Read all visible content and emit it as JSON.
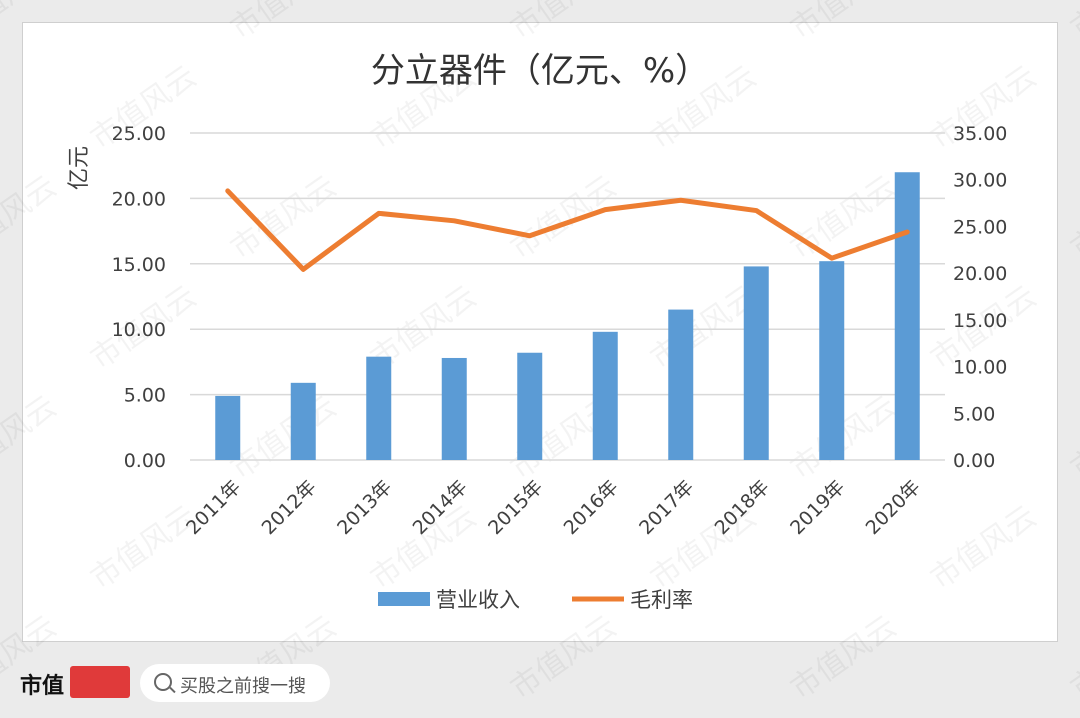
{
  "chart_data": {
    "type": "bar+line",
    "title": "分立器件（亿元、%）",
    "ylabel_left": "亿元",
    "categories": [
      "2011年",
      "2012年",
      "2013年",
      "2014年",
      "2015年",
      "2016年",
      "2017年",
      "2018年",
      "2019年",
      "2020年"
    ],
    "series": [
      {
        "name": "营业收入",
        "type": "bar",
        "axis": "left",
        "color": "#5b9bd5",
        "values": [
          4.9,
          5.9,
          7.9,
          7.8,
          8.2,
          9.8,
          11.5,
          14.8,
          15.2,
          22.0
        ]
      },
      {
        "name": "毛利率",
        "type": "line",
        "axis": "right",
        "color": "#ed7d31",
        "values": [
          28.8,
          20.4,
          26.4,
          25.6,
          24.0,
          26.8,
          27.8,
          26.7,
          21.6,
          24.4
        ]
      }
    ],
    "ylim_left": [
      0,
      25
    ],
    "yticks_left": [
      "0.00",
      "5.00",
      "10.00",
      "15.00",
      "20.00",
      "25.00"
    ],
    "ylim_right": [
      0,
      35
    ],
    "yticks_right": [
      "0.00",
      "5.00",
      "10.00",
      "15.00",
      "20.00",
      "25.00",
      "30.00",
      "35.00"
    ],
    "grid": true,
    "legend": "bottom"
  },
  "watermark": "市值风云",
  "footer": {
    "brand": "市值",
    "search_text": "买股之前搜一搜"
  }
}
